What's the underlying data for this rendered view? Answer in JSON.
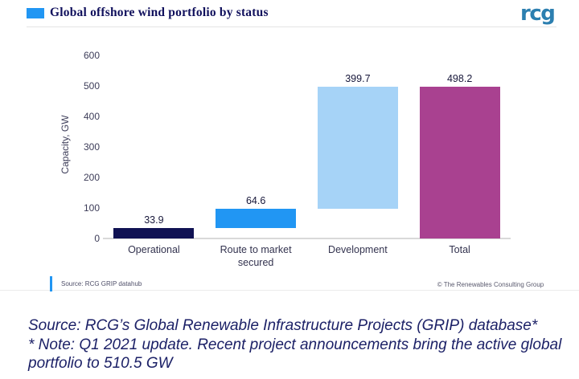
{
  "page": {
    "title": "Global offshore wind portfolio by status",
    "logo_text": "rcg",
    "accent_color": "#2196f3",
    "logo_color": "#2c7fb0"
  },
  "chart_data": {
    "type": "bar",
    "subtype": "waterfall",
    "title": "Global offshore wind portfolio by status",
    "xlabel": "",
    "ylabel": "Capacity, GW",
    "ylim": [
      0,
      600
    ],
    "yticks": [
      0,
      100,
      200,
      300,
      400,
      500,
      600
    ],
    "grid": false,
    "legend": "none",
    "categories": [
      "Operational",
      "Route to market secured",
      "Development",
      "Total"
    ],
    "bars": [
      {
        "label": "Operational",
        "base": 0,
        "value": 33.9,
        "value_label": "33.9",
        "color": "#101253"
      },
      {
        "label": "Route to market secured",
        "base": 33.9,
        "value": 64.6,
        "value_label": "64.6",
        "color": "#2196f3"
      },
      {
        "label": "Development",
        "base": 98.5,
        "value": 399.7,
        "value_label": "399.7",
        "color": "#a6d3f7"
      },
      {
        "label": "Total",
        "base": 0,
        "value": 498.2,
        "value_label": "498.2",
        "color": "#a94190"
      }
    ]
  },
  "footer": {
    "source_note": "Source: RCG GRIP datahub",
    "copyright": "© The Renewables Consulting Group"
  },
  "caption": {
    "line1": "Source: RCG’s Global Renewable Infrastructure Projects (GRIP) database*",
    "line2": "* Note: Q1 2021 update. Recent project announcements bring the active global portfolio to 510.5 GW"
  }
}
